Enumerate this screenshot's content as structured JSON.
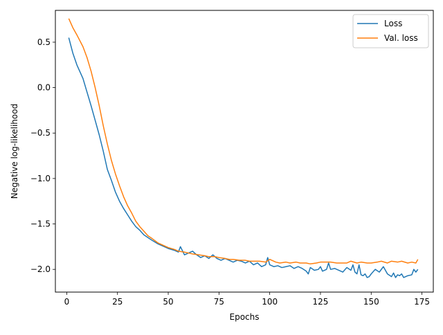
{
  "chart_data": {
    "type": "line",
    "title": "",
    "xlabel": "Epochs",
    "ylabel": "Negative log-likelihood",
    "xlim": [
      -5.6,
      180.6
    ],
    "ylim": [
      -2.25,
      0.85
    ],
    "xticks": [
      0,
      25,
      50,
      75,
      100,
      125,
      150,
      175
    ],
    "yticks": [
      0.5,
      0.0,
      -0.5,
      -1.0,
      -1.5,
      -2.0
    ],
    "ytick_labels": [
      "0.5",
      "0.0",
      "−0.5",
      "−1.0",
      "−1.5",
      "−2.0"
    ],
    "grid": false,
    "legend_position": "top-right",
    "series": [
      {
        "name": "Loss",
        "color": "#1f77b4",
        "x": [
          1,
          3,
          5,
          8,
          10,
          12,
          14,
          16,
          18,
          20,
          22,
          24,
          26,
          28,
          30,
          32,
          34,
          36,
          38,
          40,
          42,
          45,
          48,
          50,
          53,
          55,
          56,
          58,
          60,
          62,
          64,
          66,
          68,
          70,
          72,
          74,
          76,
          78,
          80,
          82,
          84,
          86,
          88,
          90,
          92,
          94,
          96,
          98,
          99,
          100,
          102,
          104,
          106,
          108,
          110,
          112,
          114,
          116,
          118,
          119,
          120,
          122,
          124,
          125,
          126,
          128,
          129,
          130,
          132,
          134,
          136,
          138,
          140,
          141,
          142,
          143,
          144,
          145,
          146,
          147,
          148,
          149,
          150,
          152,
          154,
          156,
          158,
          160,
          161,
          162,
          163,
          164,
          165,
          166,
          168,
          170,
          171,
          172,
          173
        ],
        "y": [
          0.55,
          0.38,
          0.25,
          0.1,
          -0.05,
          -0.2,
          -0.36,
          -0.52,
          -0.7,
          -0.9,
          -1.02,
          -1.15,
          -1.25,
          -1.33,
          -1.4,
          -1.47,
          -1.53,
          -1.57,
          -1.62,
          -1.65,
          -1.68,
          -1.72,
          -1.75,
          -1.77,
          -1.79,
          -1.81,
          -1.75,
          -1.84,
          -1.82,
          -1.8,
          -1.84,
          -1.87,
          -1.85,
          -1.88,
          -1.84,
          -1.88,
          -1.9,
          -1.88,
          -1.9,
          -1.92,
          -1.9,
          -1.91,
          -1.93,
          -1.91,
          -1.95,
          -1.93,
          -1.97,
          -1.95,
          -1.87,
          -1.95,
          -1.97,
          -1.96,
          -1.98,
          -1.97,
          -1.96,
          -1.99,
          -1.97,
          -1.99,
          -2.02,
          -2.05,
          -1.98,
          -2.01,
          -2.0,
          -1.97,
          -2.02,
          -2.0,
          -1.93,
          -2.0,
          -1.99,
          -2.01,
          -2.03,
          -1.98,
          -2.01,
          -1.95,
          -2.03,
          -2.05,
          -1.95,
          -2.06,
          -2.07,
          -2.05,
          -2.09,
          -2.08,
          -2.05,
          -2.0,
          -2.03,
          -1.97,
          -2.05,
          -2.08,
          -2.04,
          -2.09,
          -2.06,
          -2.07,
          -2.05,
          -2.09,
          -2.07,
          -2.06,
          -2.0,
          -2.03,
          -2.0
        ]
      },
      {
        "name": "Val. loss",
        "color": "#ff7f0e",
        "x": [
          1,
          3,
          5,
          8,
          10,
          12,
          14,
          16,
          18,
          20,
          22,
          24,
          26,
          28,
          30,
          32,
          34,
          36,
          38,
          40,
          42,
          45,
          48,
          50,
          53,
          55,
          58,
          60,
          62,
          65,
          68,
          70,
          73,
          75,
          78,
          80,
          82,
          85,
          88,
          90,
          92,
          95,
          98,
          100,
          103,
          105,
          108,
          110,
          113,
          115,
          118,
          120,
          123,
          125,
          128,
          130,
          133,
          135,
          138,
          140,
          143,
          145,
          148,
          150,
          153,
          155,
          158,
          160,
          163,
          165,
          168,
          170,
          172,
          173
        ],
        "y": [
          0.76,
          0.66,
          0.58,
          0.45,
          0.33,
          0.18,
          0.0,
          -0.2,
          -0.42,
          -0.62,
          -0.8,
          -0.95,
          -1.08,
          -1.2,
          -1.3,
          -1.38,
          -1.47,
          -1.53,
          -1.58,
          -1.63,
          -1.66,
          -1.71,
          -1.74,
          -1.76,
          -1.78,
          -1.8,
          -1.81,
          -1.82,
          -1.83,
          -1.84,
          -1.85,
          -1.86,
          -1.86,
          -1.87,
          -1.88,
          -1.89,
          -1.89,
          -1.9,
          -1.9,
          -1.91,
          -1.91,
          -1.91,
          -1.92,
          -1.89,
          -1.92,
          -1.93,
          -1.92,
          -1.93,
          -1.92,
          -1.93,
          -1.93,
          -1.94,
          -1.93,
          -1.92,
          -1.92,
          -1.92,
          -1.93,
          -1.93,
          -1.93,
          -1.91,
          -1.93,
          -1.92,
          -1.93,
          -1.93,
          -1.92,
          -1.91,
          -1.93,
          -1.91,
          -1.92,
          -1.91,
          -1.93,
          -1.92,
          -1.93,
          -1.89
        ]
      }
    ]
  }
}
